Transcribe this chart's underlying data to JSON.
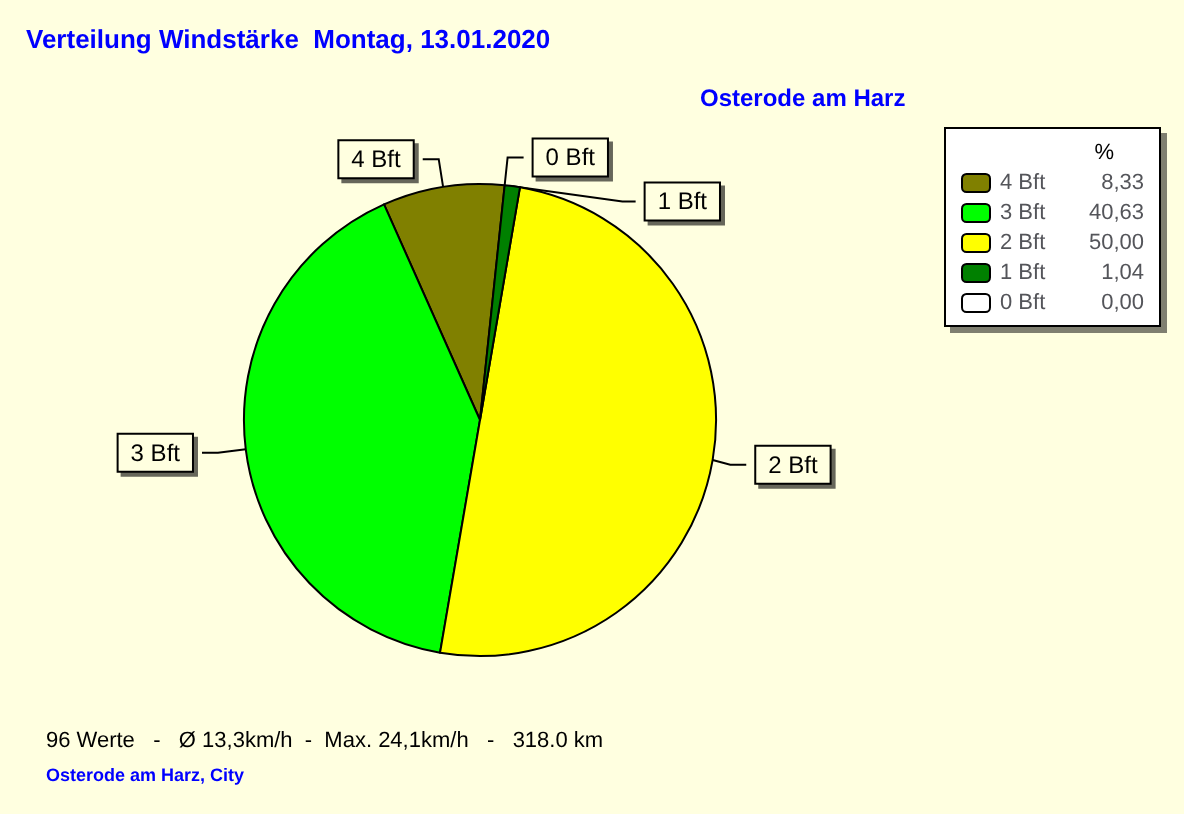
{
  "chart_data": {
    "type": "pie",
    "title": "Verteilung Windstärke  Montag, 13.01.2020",
    "subtitle": "Osterode am Harz",
    "categories": [
      "4 Bft",
      "3 Bft",
      "2 Bft",
      "1 Bft",
      "0 Bft"
    ],
    "values": [
      8.33,
      40.63,
      50.0,
      1.04,
      0.0
    ],
    "value_labels": [
      "8,33",
      "40,63",
      "50,00",
      "1,04",
      "0,00"
    ],
    "colors": [
      "#808000",
      "#00ff00",
      "#ffff00",
      "#008000",
      "#ffffff"
    ],
    "legend": "top right",
    "legend_title": "%",
    "annotations": [
      "96 Werte   -   Ø 13,3km/h  -  Max. 24,1km/h   -   318.0 km",
      "Osterode am Harz, City"
    ]
  }
}
